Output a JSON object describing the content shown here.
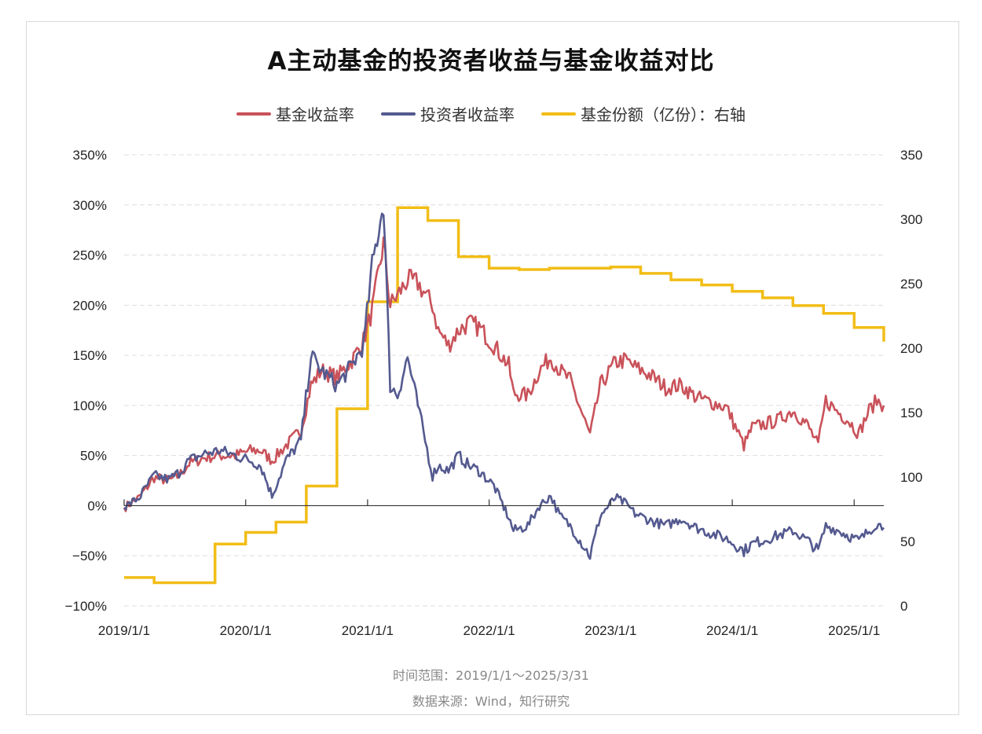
{
  "title": "A主动基金的投资者收益与基金收益对比",
  "footer": {
    "time_range": "时间范围：2019/1/1～2025/3/31",
    "source": "数据来源：Wind，知行研究"
  },
  "chart_data": {
    "type": "line",
    "title": "A主动基金的投资者收益与基金收益对比",
    "x_ticks": [
      "2019/1/1",
      "2020/1/1",
      "2021/1/1",
      "2022/1/1",
      "2023/1/1",
      "2024/1/1",
      "2025/1/1"
    ],
    "x_range": [
      "2019/1/1",
      "2025/3/31"
    ],
    "y_left": {
      "ticks": [
        "350%",
        "300%",
        "250%",
        "200%",
        "150%",
        "100%",
        "50%",
        "0%",
        "−50%",
        "−100%"
      ],
      "range": [
        -100,
        350
      ],
      "unit": "%"
    },
    "y_right": {
      "ticks": [
        "350",
        "300",
        "250",
        "200",
        "150",
        "100",
        "50",
        "0"
      ],
      "range": [
        0,
        350
      ]
    },
    "grid": true,
    "legend_position": "top-center",
    "series": [
      {
        "name": "基金收益率",
        "axis": "left",
        "color": "#c9525a",
        "style": "line",
        "points": [
          [
            "2019-01-01",
            -2
          ],
          [
            "2019-02-15",
            8
          ],
          [
            "2019-04-01",
            28
          ],
          [
            "2019-05-15",
            25
          ],
          [
            "2019-06-15",
            30
          ],
          [
            "2019-07-15",
            42
          ],
          [
            "2019-09-01",
            48
          ],
          [
            "2019-10-15",
            50
          ],
          [
            "2019-12-01",
            50
          ],
          [
            "2020-01-15",
            55
          ],
          [
            "2020-02-15",
            55
          ],
          [
            "2020-03-20",
            45
          ],
          [
            "2020-05-01",
            60
          ],
          [
            "2020-06-15",
            75
          ],
          [
            "2020-07-15",
            120
          ],
          [
            "2020-08-15",
            135
          ],
          [
            "2020-10-01",
            128
          ],
          [
            "2020-11-15",
            145
          ],
          [
            "2020-12-20",
            165
          ],
          [
            "2021-01-15",
            195
          ],
          [
            "2021-02-18",
            262
          ],
          [
            "2021-03-10",
            200
          ],
          [
            "2021-04-01",
            210
          ],
          [
            "2021-05-01",
            225
          ],
          [
            "2021-06-01",
            222
          ],
          [
            "2021-07-15",
            200
          ],
          [
            "2021-08-01",
            175
          ],
          [
            "2021-09-01",
            160
          ],
          [
            "2021-10-01",
            175
          ],
          [
            "2021-11-01",
            182
          ],
          [
            "2021-12-01",
            178
          ],
          [
            "2022-01-15",
            160
          ],
          [
            "2022-03-01",
            140
          ],
          [
            "2022-03-15",
            112
          ],
          [
            "2022-04-27",
            110
          ],
          [
            "2022-06-01",
            135
          ],
          [
            "2022-07-05",
            148
          ],
          [
            "2022-08-01",
            135
          ],
          [
            "2022-09-01",
            125
          ],
          [
            "2022-10-31",
            70
          ],
          [
            "2022-12-01",
            120
          ],
          [
            "2023-01-15",
            143
          ],
          [
            "2023-02-15",
            145
          ],
          [
            "2023-03-15",
            138
          ],
          [
            "2023-05-01",
            130
          ],
          [
            "2023-06-15",
            118
          ],
          [
            "2023-08-01",
            120
          ],
          [
            "2023-09-15",
            108
          ],
          [
            "2023-11-01",
            103
          ],
          [
            "2023-12-15",
            98
          ],
          [
            "2024-02-05",
            60
          ],
          [
            "2024-03-01",
            78
          ],
          [
            "2024-05-15",
            85
          ],
          [
            "2024-07-01",
            95
          ],
          [
            "2024-08-15",
            80
          ],
          [
            "2024-09-15",
            60
          ],
          [
            "2024-10-08",
            105
          ],
          [
            "2024-11-15",
            93
          ],
          [
            "2024-12-15",
            85
          ],
          [
            "2025-01-15",
            72
          ],
          [
            "2025-02-15",
            95
          ],
          [
            "2025-03-10",
            105
          ],
          [
            "2025-03-31",
            100
          ]
        ]
      },
      {
        "name": "投资者收益率",
        "axis": "left",
        "color": "#545a8f",
        "style": "line",
        "points": [
          [
            "2019-01-01",
            -2
          ],
          [
            "2019-02-15",
            8
          ],
          [
            "2019-04-01",
            30
          ],
          [
            "2019-05-15",
            26
          ],
          [
            "2019-06-15",
            33
          ],
          [
            "2019-07-15",
            45
          ],
          [
            "2019-09-01",
            52
          ],
          [
            "2019-10-15",
            55
          ],
          [
            "2019-12-01",
            50
          ],
          [
            "2020-01-15",
            45
          ],
          [
            "2020-02-15",
            40
          ],
          [
            "2020-03-20",
            10
          ],
          [
            "2020-05-01",
            45
          ],
          [
            "2020-06-15",
            65
          ],
          [
            "2020-07-15",
            150
          ],
          [
            "2020-08-15",
            135
          ],
          [
            "2020-10-01",
            120
          ],
          [
            "2020-11-15",
            140
          ],
          [
            "2020-12-20",
            160
          ],
          [
            "2021-01-15",
            240
          ],
          [
            "2021-02-18",
            302
          ],
          [
            "2021-03-10",
            120
          ],
          [
            "2021-04-01",
            110
          ],
          [
            "2021-05-01",
            148
          ],
          [
            "2021-06-01",
            100
          ],
          [
            "2021-07-15",
            30
          ],
          [
            "2021-08-01",
            40
          ],
          [
            "2021-09-01",
            35
          ],
          [
            "2021-10-01",
            50
          ],
          [
            "2021-11-01",
            40
          ],
          [
            "2021-12-01",
            35
          ],
          [
            "2022-01-15",
            20
          ],
          [
            "2022-03-01",
            -12
          ],
          [
            "2022-03-15",
            -25
          ],
          [
            "2022-04-27",
            -20
          ],
          [
            "2022-06-01",
            0
          ],
          [
            "2022-07-05",
            10
          ],
          [
            "2022-08-01",
            -10
          ],
          [
            "2022-09-01",
            -20
          ],
          [
            "2022-10-31",
            -50
          ],
          [
            "2022-12-01",
            -10
          ],
          [
            "2023-01-15",
            8
          ],
          [
            "2023-02-15",
            2
          ],
          [
            "2023-03-15",
            -8
          ],
          [
            "2023-05-01",
            -15
          ],
          [
            "2023-06-15",
            -20
          ],
          [
            "2023-08-01",
            -13
          ],
          [
            "2023-09-15",
            -22
          ],
          [
            "2023-11-01",
            -28
          ],
          [
            "2023-12-15",
            -33
          ],
          [
            "2024-02-05",
            -45
          ],
          [
            "2024-03-01",
            -38
          ],
          [
            "2024-05-15",
            -30
          ],
          [
            "2024-07-01",
            -25
          ],
          [
            "2024-08-15",
            -35
          ],
          [
            "2024-09-15",
            -45
          ],
          [
            "2024-10-08",
            -20
          ],
          [
            "2024-11-15",
            -25
          ],
          [
            "2024-12-15",
            -30
          ],
          [
            "2025-01-15",
            -35
          ],
          [
            "2025-02-15",
            -25
          ],
          [
            "2025-03-10",
            -18
          ],
          [
            "2025-03-31",
            -22
          ]
        ]
      },
      {
        "name": "基金份额（亿份）：右轴",
        "axis": "right",
        "color": "#f2bd16",
        "style": "step",
        "points": [
          [
            "2019-01-01",
            22
          ],
          [
            "2019-04-01",
            18
          ],
          [
            "2019-10-01",
            48
          ],
          [
            "2020-01-01",
            57
          ],
          [
            "2020-04-01",
            65
          ],
          [
            "2020-07-01",
            93
          ],
          [
            "2020-10-01",
            153
          ],
          [
            "2021-01-01",
            236
          ],
          [
            "2021-04-01",
            309
          ],
          [
            "2021-07-01",
            299
          ],
          [
            "2021-10-01",
            271
          ],
          [
            "2022-01-01",
            262
          ],
          [
            "2022-04-01",
            261
          ],
          [
            "2022-07-01",
            262
          ],
          [
            "2022-10-01",
            262
          ],
          [
            "2023-01-01",
            263
          ],
          [
            "2023-04-01",
            258
          ],
          [
            "2023-07-01",
            253
          ],
          [
            "2023-10-01",
            249
          ],
          [
            "2024-01-01",
            244
          ],
          [
            "2024-04-01",
            239
          ],
          [
            "2024-07-01",
            233
          ],
          [
            "2024-10-01",
            227
          ],
          [
            "2025-01-01",
            216
          ],
          [
            "2025-03-31",
            205
          ]
        ]
      }
    ]
  }
}
